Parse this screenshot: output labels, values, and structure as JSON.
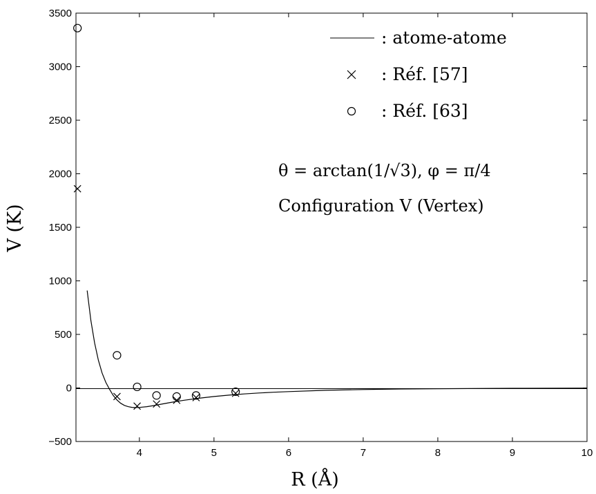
{
  "chart_data": {
    "type": "line",
    "xlabel": "R (Å)",
    "ylabel": "V (K)",
    "xlim": [
      3.15,
      10
    ],
    "ylim": [
      -500,
      3500
    ],
    "xticks": [
      4,
      5,
      6,
      7,
      8,
      9,
      10
    ],
    "yticks": [
      -500,
      0,
      500,
      1000,
      1500,
      2000,
      2500,
      3000,
      3500
    ],
    "grid": false,
    "legend_position": "top-right",
    "annotations": [
      "θ = arctan(1/√3),  φ = π/4",
      "Configuration V (Vertex)"
    ],
    "series": [
      {
        "name": ": atome-atome",
        "kind": "line",
        "color": "#000000",
        "x": [
          3.3,
          3.35,
          3.4,
          3.45,
          3.5,
          3.55,
          3.6,
          3.65,
          3.7,
          3.75,
          3.8,
          3.85,
          3.9,
          3.95,
          4.0,
          4.1,
          4.2,
          4.3,
          4.4,
          4.5,
          4.6,
          4.8,
          5.0,
          5.2,
          5.4,
          5.6,
          5.8,
          6.0,
          6.5,
          7.0,
          7.5,
          8.0,
          9.0,
          10.0
        ],
        "y": [
          910,
          630,
          420,
          260,
          140,
          52,
          -12,
          -70,
          -112,
          -143,
          -163,
          -175,
          -181,
          -183,
          -182,
          -175,
          -164,
          -151,
          -138,
          -126,
          -115,
          -96,
          -80,
          -67,
          -56,
          -47,
          -40,
          -34,
          -22,
          -15,
          -10,
          -7,
          -3,
          -1
        ]
      },
      {
        "name": ": Réf. [57]",
        "kind": "marker",
        "marker": "x",
        "color": "#000000",
        "x": [
          3.17,
          3.7,
          3.97,
          4.23,
          4.5,
          4.76,
          5.29
        ],
        "y": [
          1860,
          -80,
          -170,
          -150,
          -115,
          -90,
          -50
        ]
      },
      {
        "name": ": Réf. [63]",
        "kind": "marker",
        "marker": "o",
        "color": "#000000",
        "x": [
          3.17,
          3.7,
          3.97,
          4.23,
          4.5,
          4.76,
          5.29
        ],
        "y": [
          3360,
          305,
          10,
          -70,
          -80,
          -70,
          -35
        ]
      }
    ]
  }
}
